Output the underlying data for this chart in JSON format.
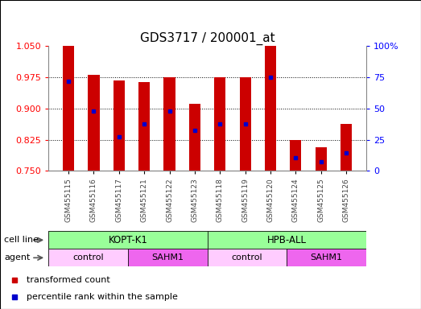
{
  "title": "GDS3717 / 200001_at",
  "samples": [
    "GSM455115",
    "GSM455116",
    "GSM455117",
    "GSM455121",
    "GSM455122",
    "GSM455123",
    "GSM455118",
    "GSM455119",
    "GSM455120",
    "GSM455124",
    "GSM455125",
    "GSM455126"
  ],
  "bar_tops": [
    1.05,
    0.98,
    0.968,
    0.963,
    0.975,
    0.912,
    0.975,
    0.975,
    1.05,
    0.825,
    0.807,
    0.862
  ],
  "bar_bottom": 0.75,
  "blue_dots": [
    0.965,
    0.893,
    0.831,
    0.862,
    0.893,
    0.848,
    0.862,
    0.862,
    0.975,
    0.782,
    0.771,
    0.793
  ],
  "ylim_left": [
    0.75,
    1.05
  ],
  "ylim_right": [
    0,
    100
  ],
  "yticks_left": [
    0.75,
    0.825,
    0.9,
    0.975,
    1.05
  ],
  "yticks_right": [
    0,
    25,
    50,
    75,
    100
  ],
  "bar_color": "#cc0000",
  "dot_color": "#0000cc",
  "title_fontsize": 11,
  "cell_line_color": "#99ff99",
  "agent_colors": [
    "#ffccff",
    "#ee66ee",
    "#ffccff",
    "#ee66ee"
  ],
  "legend_red": "transformed count",
  "legend_blue": "percentile rank within the sample"
}
